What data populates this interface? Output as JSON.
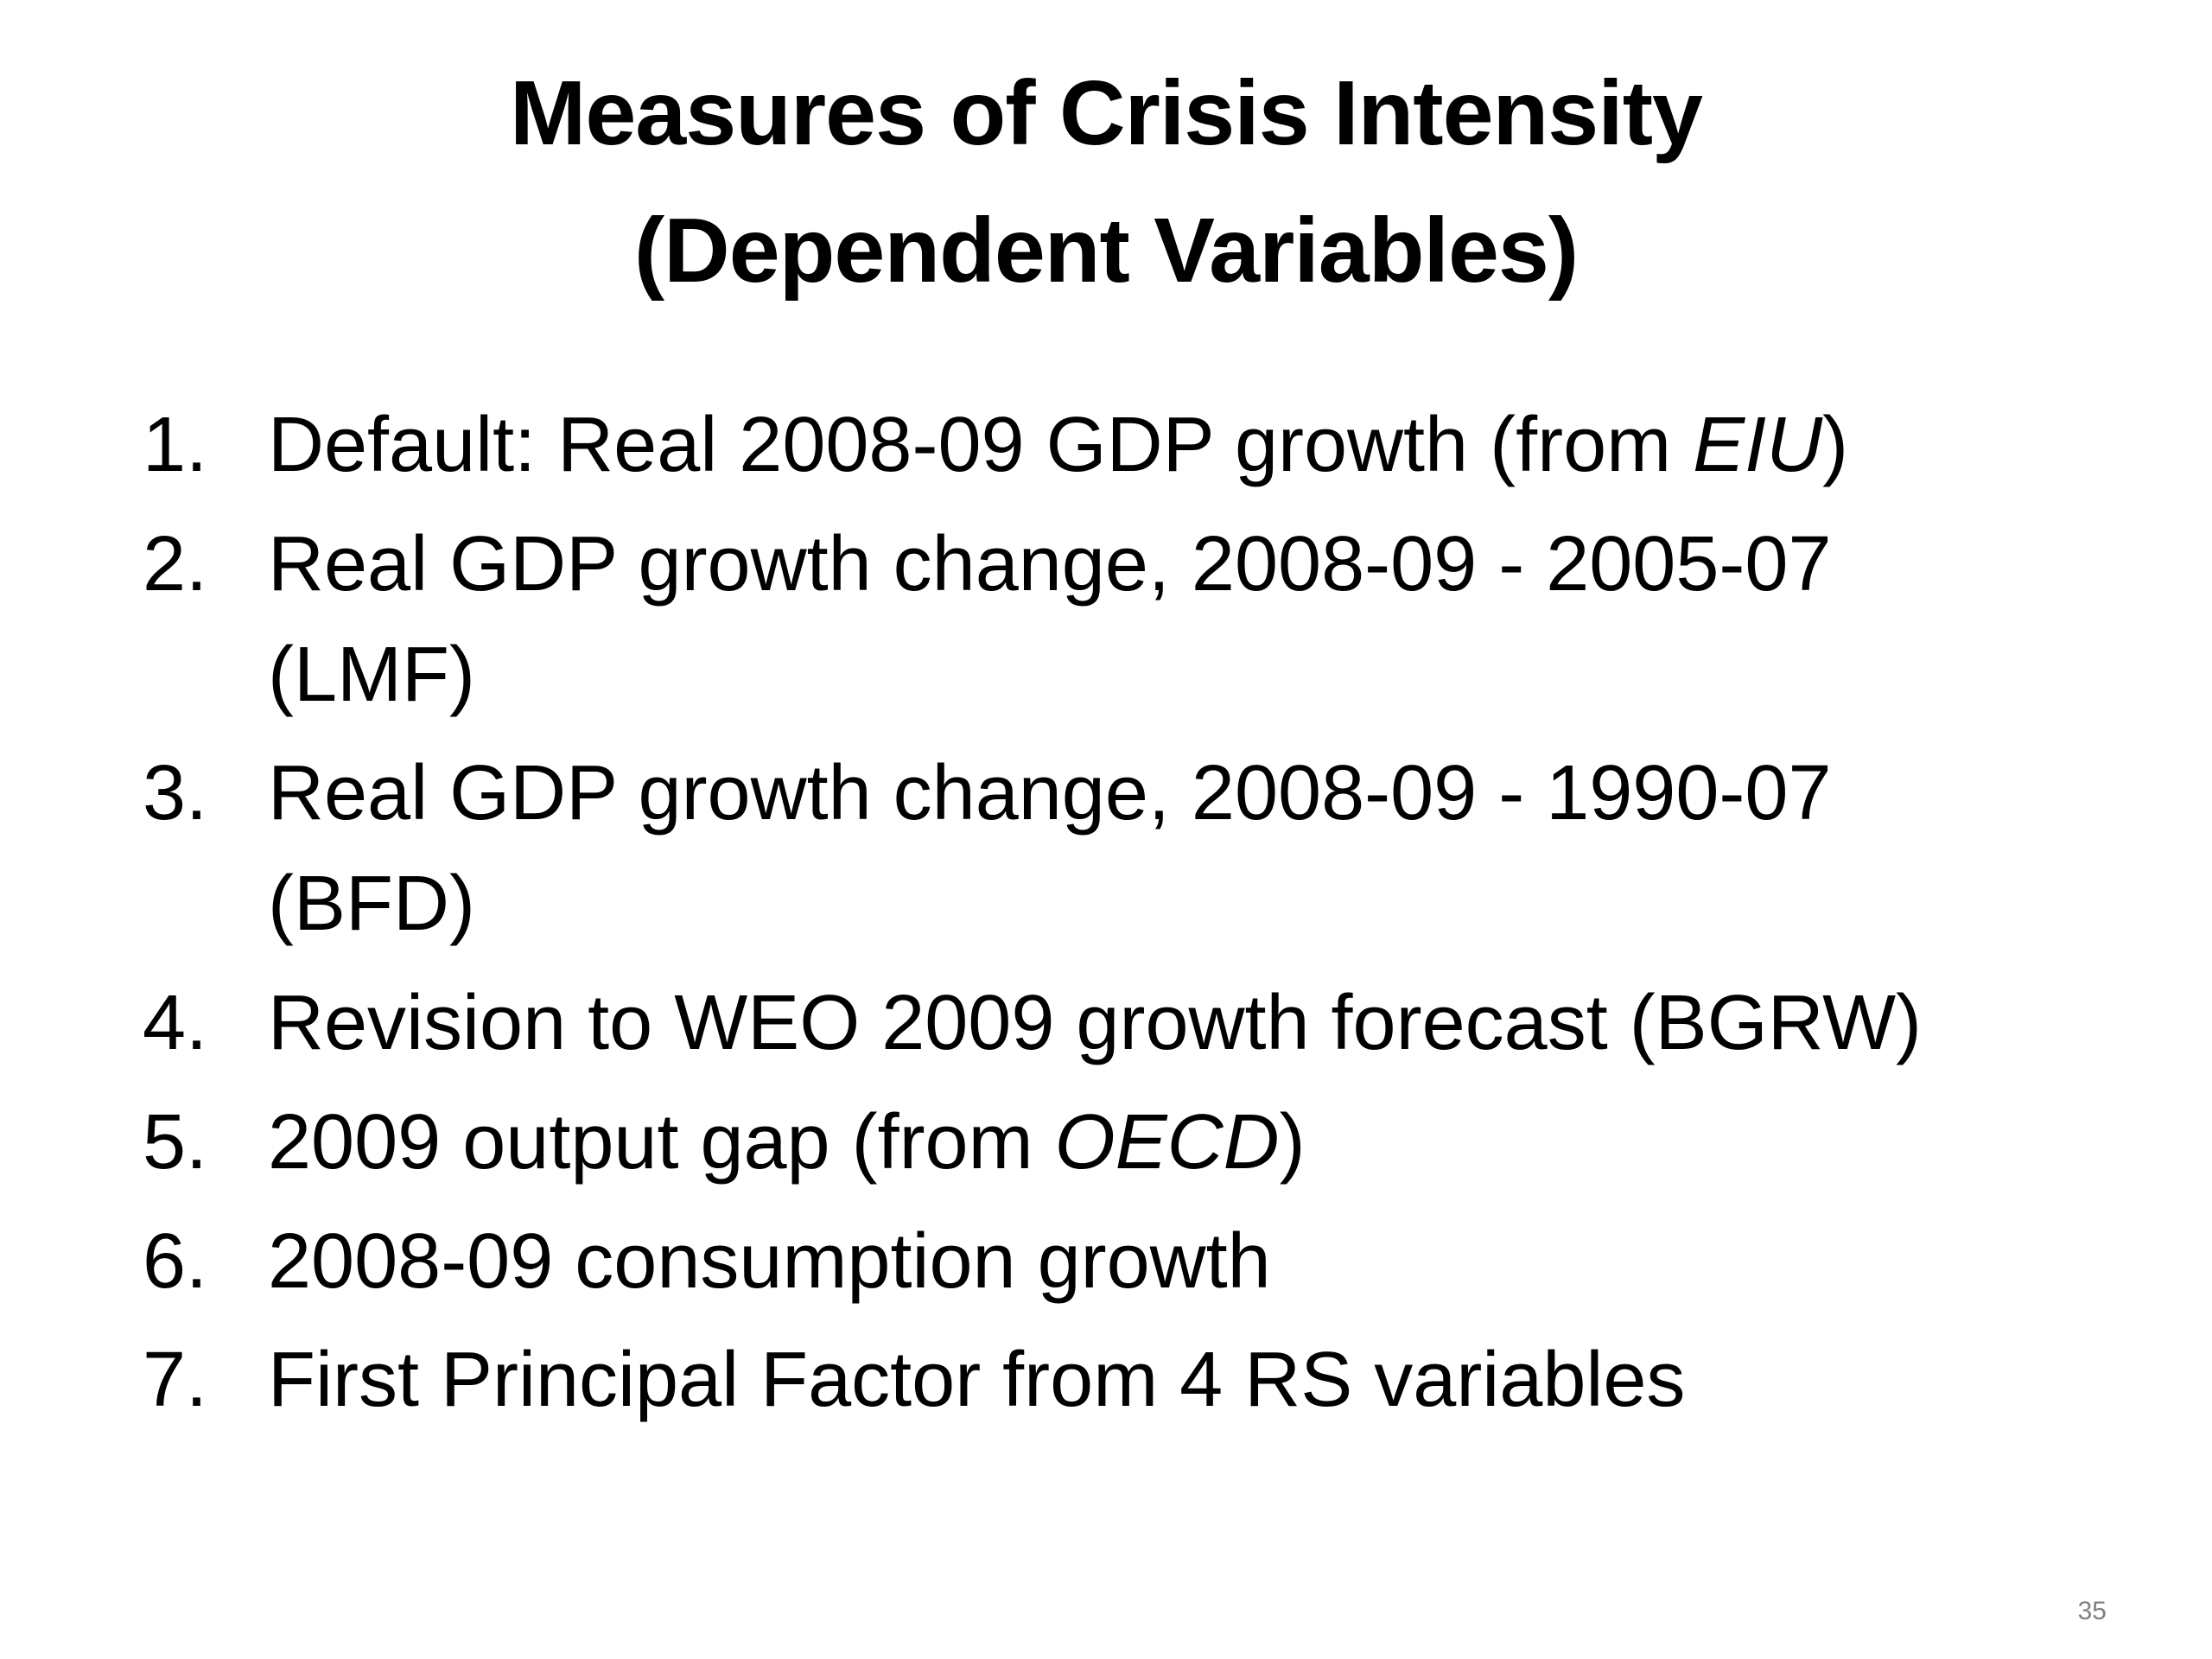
{
  "slide": {
    "title": {
      "line1": "Measures of Crisis Intensity",
      "line2": "(Dependent Variables)"
    },
    "list": {
      "items": [
        {
          "number": "1.",
          "lines": [
            [
              {
                "t": "Default: Real 2008-09 GDP growth (from "
              },
              {
                "t": "EIU",
                "i": true
              },
              {
                "t": ")"
              }
            ]
          ]
        },
        {
          "number": "2.",
          "lines": [
            [
              {
                "t": "Real GDP growth change, 2008-09 - 2005-07"
              }
            ],
            [
              {
                "t": "(LMF)"
              }
            ]
          ]
        },
        {
          "number": "3.",
          "lines": [
            [
              {
                "t": "Real GDP growth change, 2008-09 - 1990-07"
              }
            ],
            [
              {
                "t": "(BFD)"
              }
            ]
          ]
        },
        {
          "number": "4.",
          "lines": [
            [
              {
                "t": "Revision to WEO 2009 growth forecast (BGRW)"
              }
            ]
          ]
        },
        {
          "number": "5.",
          "lines": [
            [
              {
                "t": "2009 output gap (from "
              },
              {
                "t": "OECD",
                "i": true
              },
              {
                "t": ")"
              }
            ]
          ]
        },
        {
          "number": "6.",
          "lines": [
            [
              {
                "t": "2008-09 consumption growth"
              }
            ]
          ]
        },
        {
          "number": "7.",
          "lines": [
            [
              {
                "t": "First Principal Factor from 4 RS variables"
              }
            ]
          ]
        }
      ]
    },
    "page_number": "35",
    "colors": {
      "background": "#ffffff",
      "text": "#000000",
      "page_number": "#808080"
    }
  }
}
